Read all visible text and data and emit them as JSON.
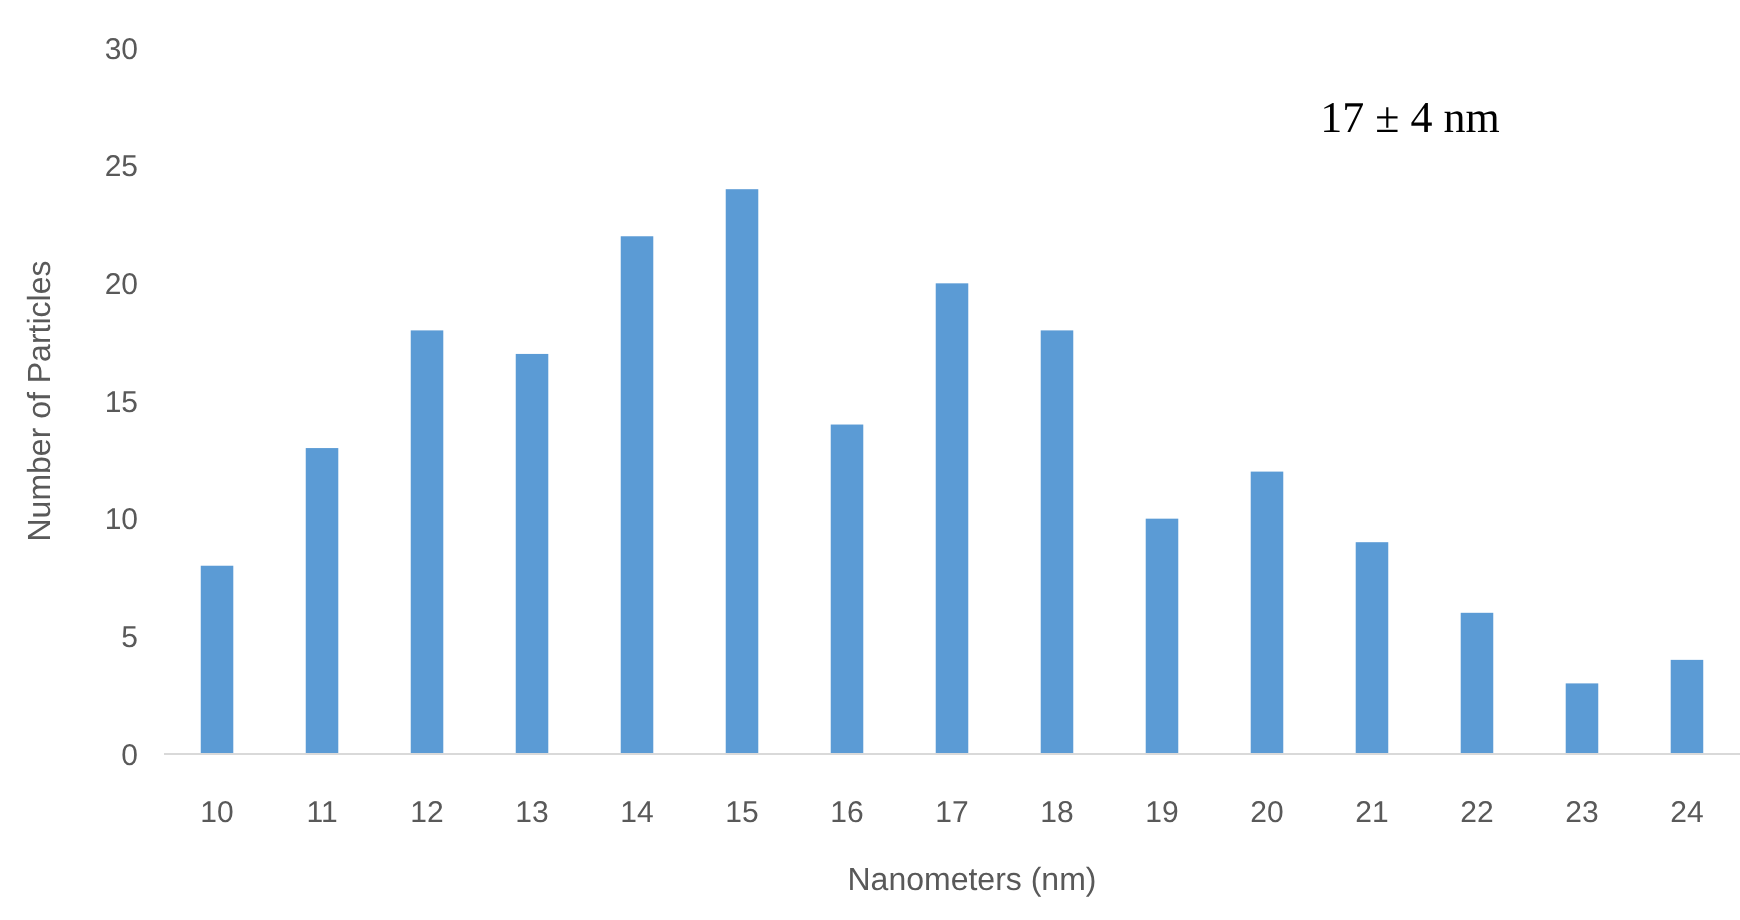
{
  "chart_data": {
    "type": "bar",
    "xlabel": "Nanometers (nm)",
    "ylabel": "Number of Particles",
    "categories": [
      "10",
      "11",
      "12",
      "13",
      "14",
      "15",
      "16",
      "17",
      "18",
      "19",
      "20",
      "21",
      "22",
      "23",
      "24"
    ],
    "values": [
      8,
      13,
      18,
      17,
      22,
      24,
      14,
      20,
      18,
      10,
      12,
      9,
      6,
      3,
      4
    ],
    "color": "#5b9bd5",
    "ylim": [
      0,
      30
    ],
    "yticks": [
      0,
      5,
      10,
      15,
      20,
      25,
      30
    ],
    "grid": false,
    "annotations": [
      "17 ± 4 nm"
    ]
  }
}
